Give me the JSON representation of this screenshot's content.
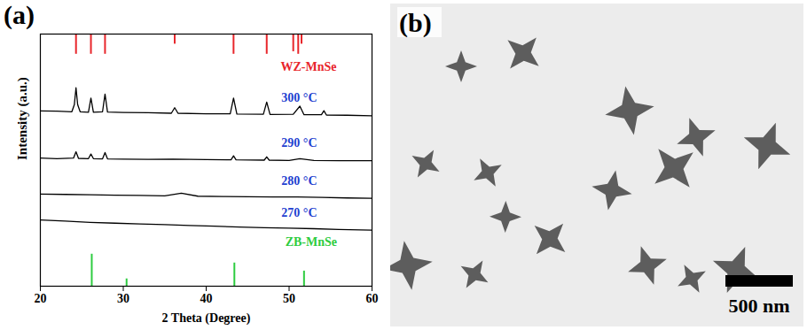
{
  "chart_data": {
    "type": "line",
    "title": "(a)",
    "x_label": "2 Theta (Degree)",
    "y_label": "Intensity (a.u.)",
    "xlim": [
      20,
      60
    ],
    "xticks": [
      20,
      30,
      40,
      50,
      60
    ],
    "ylim": [
      0,
      100
    ],
    "yticks": [],
    "tick_labels": "x",
    "grid": false,
    "series": [
      {
        "name": "WZ-MnSe",
        "type": "stick",
        "color": "#e8262b",
        "baseline": 100,
        "x": [
          24.3,
          26.1,
          27.8,
          36.2,
          43.3,
          47.3,
          50.5,
          51.1,
          51.5
        ],
        "values": [
          92,
          92,
          92,
          96,
          92,
          92,
          93,
          92,
          96
        ]
      },
      {
        "name": "300 °C",
        "type": "line",
        "color": "#000000",
        "x": [
          20,
          22,
          23.8,
          24.1,
          24.3,
          24.5,
          24.8,
          25.8,
          26.1,
          26.4,
          27.5,
          27.8,
          28.1,
          30,
          33,
          35.8,
          36.2,
          36.6,
          40,
          42.9,
          43.3,
          43.7,
          46.9,
          47.3,
          47.7,
          50.5,
          51.3,
          51.8,
          53.9,
          54.2,
          54.5,
          57,
          60
        ],
        "values": [
          69.5,
          69.4,
          69.2,
          72,
          78.7,
          72,
          69.2,
          69.0,
          74.6,
          69.0,
          69.2,
          76.2,
          69.1,
          68.9,
          68.8,
          68.6,
          70.8,
          68.6,
          68.4,
          68.4,
          74.6,
          68.3,
          68.2,
          73.0,
          68.1,
          68.2,
          71.4,
          68.0,
          68.0,
          69.6,
          67.9,
          67.8,
          67.6
        ]
      },
      {
        "name": "290 °C",
        "type": "line",
        "color": "#000000",
        "x": [
          20,
          22,
          24,
          24.3,
          24.6,
          25.8,
          26.1,
          26.4,
          27.5,
          27.8,
          28.1,
          30,
          33,
          36,
          40,
          43,
          43.3,
          43.6,
          47,
          47.3,
          47.6,
          50,
          51.3,
          53,
          56,
          60
        ],
        "values": [
          50.8,
          50.6,
          50.8,
          53.3,
          50.7,
          50.6,
          52.4,
          50.6,
          50.5,
          53.0,
          50.5,
          50.4,
          50.3,
          50.4,
          50.2,
          50.1,
          51.7,
          50.1,
          50.0,
          51.3,
          50.0,
          49.9,
          50.6,
          49.9,
          49.8,
          49.8
        ]
      },
      {
        "name": "280 °C",
        "type": "line",
        "color": "#000000",
        "x": [
          20,
          23,
          26,
          29,
          32,
          35,
          37,
          39,
          42,
          45,
          48,
          51,
          54,
          57,
          60
        ],
        "values": [
          36.5,
          36.4,
          36.3,
          36.1,
          36.0,
          35.8,
          36.9,
          35.7,
          35.6,
          35.5,
          35.4,
          35.4,
          35.2,
          35.0,
          34.9
        ]
      },
      {
        "name": "270 °C",
        "type": "line",
        "color": "#000000",
        "x": [
          20,
          23,
          26,
          29,
          32,
          35,
          38,
          41,
          44,
          47,
          50,
          53,
          56,
          60
        ],
        "values": [
          26.3,
          25.8,
          25.3,
          25.0,
          24.7,
          24.4,
          24.1,
          23.8,
          23.5,
          23.2,
          23.0,
          22.8,
          22.5,
          22.2
        ]
      },
      {
        "name": "ZB-MnSe",
        "type": "stick",
        "color": "#2ecc40",
        "baseline": 0,
        "x": [
          26.2,
          30.4,
          43.4,
          51.8
        ],
        "values": [
          12.7,
          2.9,
          9.2,
          6.0
        ]
      }
    ]
  },
  "image_panel": {
    "title": "(b)",
    "scale_bar": "500 nm"
  }
}
